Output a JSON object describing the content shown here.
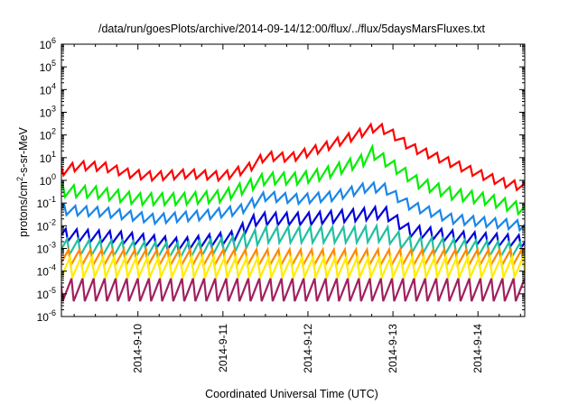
{
  "chart_data": {
    "type": "line",
    "title": "/data/run/goesPlots/archive/2014-09-14/12:00/flux/../flux/5daysMarsFluxes.txt",
    "xlabel": "Coordinated Universal Time (UTC)",
    "ylabel": {
      "base": "protons/cm",
      "sup": "2",
      "rest": "-s-sr-MeV"
    },
    "x_axis": {
      "unit": "day (Sept 2014)",
      "xlim": [
        9.1,
        14.55
      ],
      "ticks": [
        10,
        11,
        12,
        13,
        14
      ],
      "tick_labels": [
        "2014-9-10",
        "2014-9-11",
        "2014-9-12",
        "2014-9-13",
        "2014-9-14"
      ]
    },
    "y_axis": {
      "scale": "log",
      "ylim": [
        1e-06,
        1000000.0
      ],
      "tick_exponents": [
        -6,
        -5,
        -4,
        -3,
        -2,
        -1,
        0,
        1,
        2,
        3,
        4,
        5,
        6
      ]
    },
    "grid": false,
    "legend": "none",
    "series": [
      {
        "color": "#ff0000",
        "low": 2.0,
        "high": 5.0,
        "period_days": 0.13,
        "points": [
          [
            9.1,
            2.5
          ],
          [
            9.3,
            4.5
          ],
          [
            9.6,
            4.0
          ],
          [
            9.9,
            2.0
          ],
          [
            10.2,
            1.5
          ],
          [
            10.6,
            2.0
          ],
          [
            11.0,
            1.5
          ],
          [
            11.3,
            3.5
          ],
          [
            11.5,
            12
          ],
          [
            11.8,
            10
          ],
          [
            12.2,
            30
          ],
          [
            12.5,
            80
          ],
          [
            12.8,
            230
          ],
          [
            12.95,
            150
          ],
          [
            13.2,
            30
          ],
          [
            13.6,
            8
          ],
          [
            14.0,
            2.0
          ],
          [
            14.3,
            0.8
          ],
          [
            14.55,
            0.5
          ]
        ]
      },
      {
        "color": "#00ee00",
        "low": 0.15,
        "high": 0.5,
        "period_days": 0.13,
        "points": [
          [
            9.1,
            0.35
          ],
          [
            9.5,
            0.3
          ],
          [
            10.0,
            0.15
          ],
          [
            10.5,
            0.15
          ],
          [
            11.0,
            0.2
          ],
          [
            11.2,
            0.4
          ],
          [
            11.5,
            1.2
          ],
          [
            11.9,
            1.2
          ],
          [
            12.2,
            2.0
          ],
          [
            12.5,
            5
          ],
          [
            12.7,
            9
          ],
          [
            12.72,
            20
          ],
          [
            12.9,
            8
          ],
          [
            13.3,
            0.8
          ],
          [
            13.7,
            0.25
          ],
          [
            14.1,
            0.15
          ],
          [
            14.55,
            0.05
          ]
        ]
      },
      {
        "color": "#1a86e8",
        "low": 0.03,
        "high": 0.08,
        "period_days": 0.13,
        "points": [
          [
            9.1,
            0.05
          ],
          [
            9.6,
            0.04
          ],
          [
            10.2,
            0.02
          ],
          [
            10.8,
            0.03
          ],
          [
            11.2,
            0.05
          ],
          [
            11.5,
            0.2
          ],
          [
            11.9,
            0.15
          ],
          [
            12.3,
            0.2
          ],
          [
            12.7,
            0.5
          ],
          [
            12.9,
            0.45
          ],
          [
            13.2,
            0.08
          ],
          [
            13.7,
            0.02
          ],
          [
            14.55,
            0.01
          ]
        ]
      },
      {
        "color": "#0000dd",
        "low": 0.002,
        "high": 0.007,
        "period_days": 0.13,
        "points": [
          [
            9.1,
            0.004
          ],
          [
            9.8,
            0.003
          ],
          [
            10.5,
            0.0015
          ],
          [
            11.1,
            0.003
          ],
          [
            11.4,
            0.02
          ],
          [
            12.0,
            0.02
          ],
          [
            12.6,
            0.03
          ],
          [
            12.9,
            0.04
          ],
          [
            13.2,
            0.006
          ],
          [
            13.8,
            0.003
          ],
          [
            14.55,
            0.002
          ]
        ]
      },
      {
        "color": "#20c0a0",
        "low": 0.0006,
        "high": 0.003,
        "period_days": 0.13,
        "points": [
          [
            9.1,
            0.0012
          ],
          [
            10.5,
            0.0008
          ],
          [
            11.1,
            0.0015
          ],
          [
            11.5,
            0.004
          ],
          [
            12.5,
            0.004
          ],
          [
            12.9,
            0.0045
          ],
          [
            13.2,
            0.0015
          ],
          [
            14.55,
            0.0008
          ]
        ]
      },
      {
        "color": "#ff8800",
        "low": 0.0002,
        "high": 0.001,
        "period_days": 0.13,
        "points": [
          [
            9.1,
            0.0004
          ],
          [
            14.55,
            0.0004
          ]
        ]
      },
      {
        "color": "#ffee00",
        "low": 5e-05,
        "high": 0.0004,
        "period_days": 0.13,
        "points": [
          [
            9.1,
            0.00015
          ],
          [
            14.55,
            0.00015
          ]
        ]
      },
      {
        "color": "#a02060",
        "low": 5e-06,
        "high": 5e-05,
        "period_days": 0.13,
        "points": [
          [
            9.1,
            1.5e-05
          ],
          [
            14.55,
            1.5e-05
          ]
        ]
      }
    ]
  }
}
